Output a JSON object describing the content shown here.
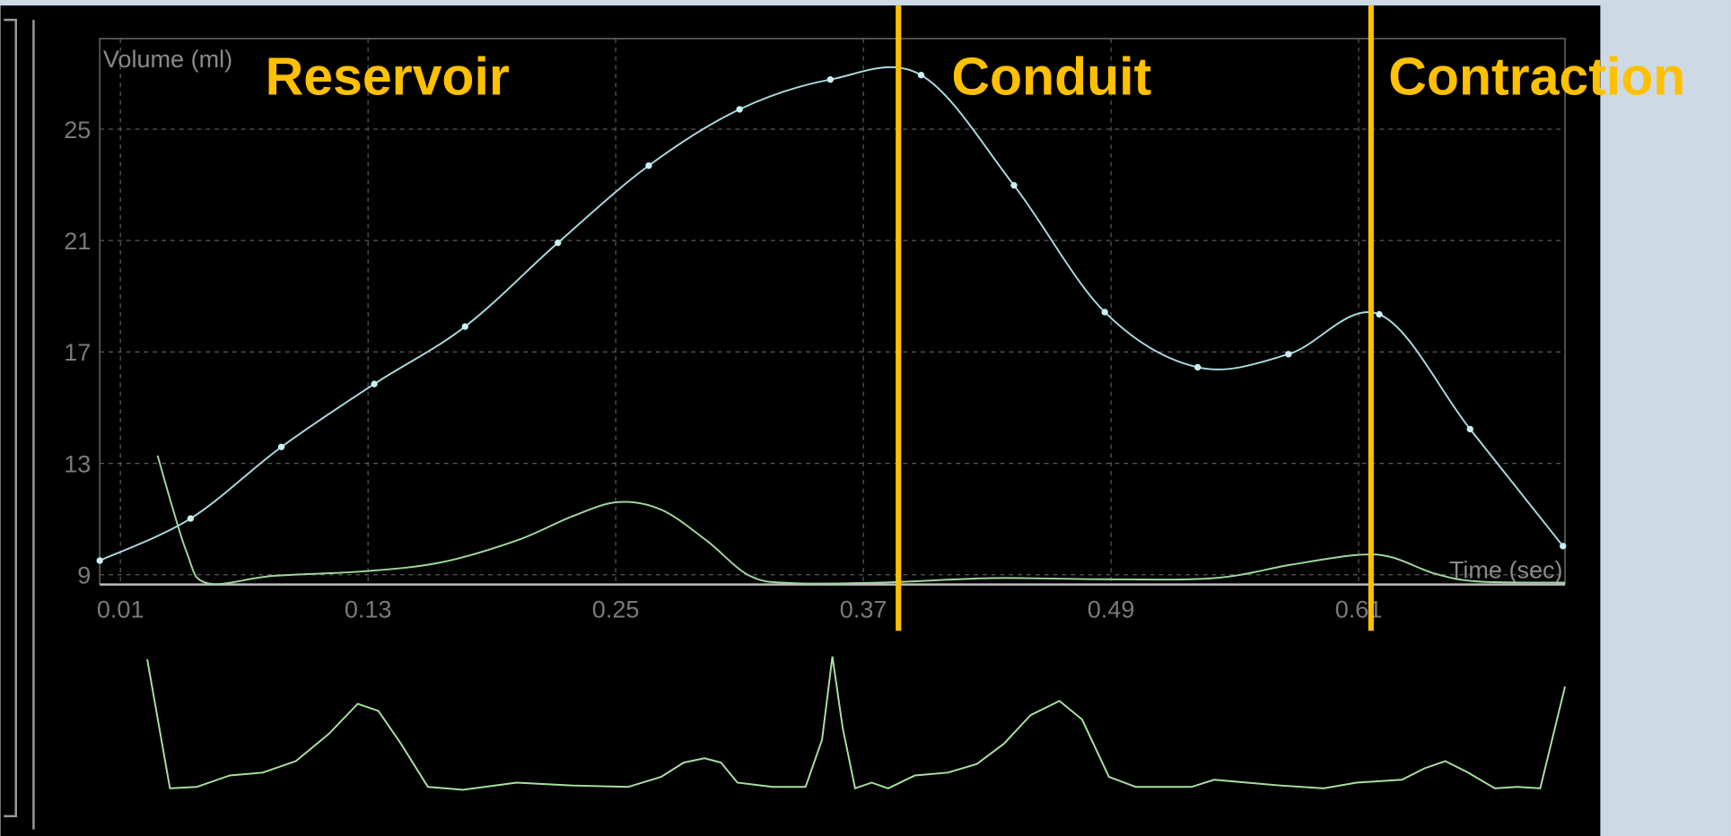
{
  "chart_data": {
    "type": "line",
    "y_label": "Volume (ml)",
    "x_label": "Time (sec)",
    "xlim": [
      0,
      0.71
    ],
    "xticks": [
      0.01,
      0.13,
      0.25,
      0.37,
      0.49,
      0.61
    ],
    "ylim": [
      8.65,
      28.25
    ],
    "yticks": [
      9,
      13,
      17,
      21,
      25
    ],
    "y2lim": [
      0,
      100
    ],
    "grid": true,
    "phase_labels": [
      "Reservoir",
      "Conduit",
      "Contraction"
    ],
    "phase_boundaries": [
      0.387,
      0.616
    ],
    "phase_color": "#ffc000",
    "series": [
      {
        "color": "#a9d8df",
        "markers": true,
        "x": [
          0.0,
          0.044,
          0.088,
          0.133,
          0.177,
          0.222,
          0.266,
          0.31,
          0.354,
          0.398,
          0.443,
          0.487,
          0.532,
          0.576,
          0.62,
          0.664,
          0.709
        ],
        "values": [
          9.51,
          11.02,
          13.59,
          15.85,
          17.91,
          20.92,
          23.69,
          25.71,
          26.78,
          26.94,
          22.98,
          18.43,
          16.45,
          16.92,
          18.35,
          14.23,
          10.03
        ]
      },
      {
        "color": "#9fd69c",
        "markers": false,
        "x": [
          0.028,
          0.042,
          0.052,
          0.084,
          0.127,
          0.165,
          0.202,
          0.229,
          0.251,
          0.272,
          0.294,
          0.315,
          0.336,
          0.379,
          0.433,
          0.486,
          0.54,
          0.577,
          0.609,
          0.626,
          0.647,
          0.668,
          0.71
        ],
        "values": [
          13.28,
          9.83,
          8.7,
          8.96,
          9.12,
          9.44,
          10.23,
          11.1,
          11.61,
          11.34,
          10.23,
          8.96,
          8.7,
          8.72,
          8.88,
          8.84,
          8.88,
          9.36,
          9.71,
          9.63,
          9.04,
          8.76,
          8.72
        ]
      },
      {
        "color": "#a8e0a0",
        "markers": false,
        "axis": "y2",
        "x": [
          0.023,
          0.034,
          0.047,
          0.063,
          0.079,
          0.095,
          0.111,
          0.125,
          0.135,
          0.146,
          0.159,
          0.176,
          0.202,
          0.229,
          0.256,
          0.272,
          0.283,
          0.293,
          0.301,
          0.309,
          0.326,
          0.342,
          0.35,
          0.355,
          0.36,
          0.366,
          0.374,
          0.382,
          0.395,
          0.411,
          0.425,
          0.438,
          0.451,
          0.465,
          0.476,
          0.489,
          0.502,
          0.529,
          0.54,
          0.556,
          0.572,
          0.593,
          0.609,
          0.631,
          0.642,
          0.652,
          0.663,
          0.676,
          0.687,
          0.698,
          0.71
        ],
        "values": [
          94,
          4,
          5,
          13,
          15,
          23,
          42,
          63,
          58,
          35,
          5,
          3,
          8,
          6,
          5,
          12,
          22,
          25,
          22,
          8,
          5,
          5,
          38,
          96,
          46,
          4,
          8,
          4,
          13,
          15,
          21,
          35,
          55,
          65,
          52,
          12,
          5,
          5,
          10,
          8,
          6,
          4,
          8,
          10,
          18,
          23,
          15,
          4,
          5,
          4,
          75
        ]
      }
    ]
  }
}
